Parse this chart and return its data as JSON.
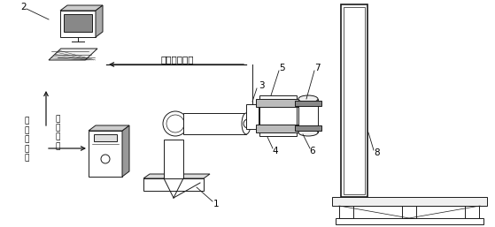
{
  "bg_color": "#ffffff",
  "line_color": "#1a1a1a",
  "label_1": "1",
  "label_2": "2",
  "label_3": "3",
  "label_4": "4",
  "label_5": "5",
  "label_6": "6",
  "label_7": "7",
  "label_8": "8",
  "text_sensor": "力传感器数据",
  "text_robot_state": "机器人状态",
  "text_control": "控制指令",
  "figsize": [
    5.59,
    2.57
  ],
  "dpi": 100
}
